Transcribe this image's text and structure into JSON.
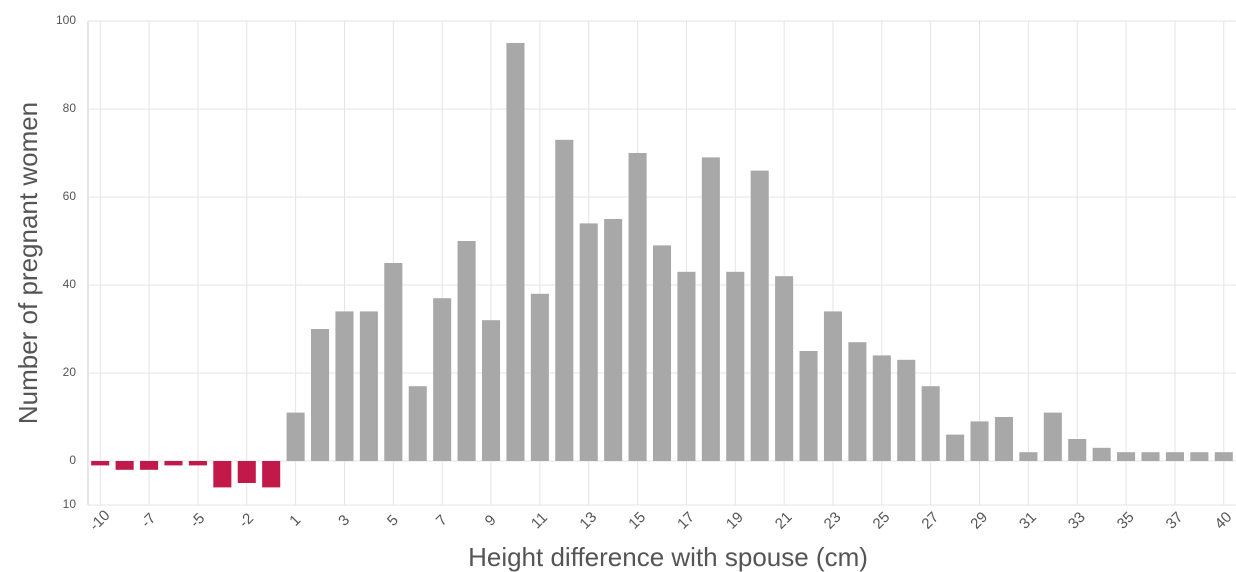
{
  "chart_data": {
    "type": "bar",
    "x_label": "Height difference with spouse (cm)",
    "y_label": "Number of pregnant women",
    "categories": [
      "-10",
      null,
      "-7",
      null,
      "-5",
      null,
      "-2",
      null,
      "1",
      null,
      "3",
      null,
      "5",
      null,
      "7",
      null,
      "9",
      null,
      "11",
      null,
      "13",
      null,
      "15",
      null,
      "17",
      null,
      "19",
      null,
      "21",
      null,
      "23",
      null,
      "25",
      null,
      "27",
      null,
      "29",
      null,
      "31",
      null,
      "33",
      null,
      "35",
      null,
      "37",
      null,
      "40"
    ],
    "values": [
      -1,
      -2,
      -2,
      -1,
      -1,
      -6,
      -5,
      -6,
      11,
      30,
      34,
      34,
      45,
      17,
      37,
      50,
      32,
      95,
      38,
      73,
      54,
      55,
      70,
      49,
      43,
      69,
      43,
      66,
      42,
      25,
      34,
      27,
      24,
      23,
      17,
      6,
      9,
      10,
      2,
      11,
      5,
      3,
      2,
      2,
      2,
      2,
      2
    ],
    "color": "#a8a8a8",
    "negative_color": "#c0194a",
    "ylim": [
      -10,
      100
    ],
    "yticks": [
      {
        "value": -10,
        "label": "10"
      },
      0,
      20,
      40,
      60,
      80,
      100
    ],
    "grid": true
  }
}
